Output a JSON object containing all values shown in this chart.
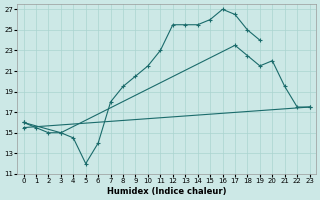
{
  "xlabel": "Humidex (Indice chaleur)",
  "bg_color": "#cce8e6",
  "grid_color": "#aad4d0",
  "line_color": "#1a6b6b",
  "xlim": [
    -0.5,
    23.5
  ],
  "ylim": [
    11,
    27.5
  ],
  "xticks": [
    0,
    1,
    2,
    3,
    4,
    5,
    6,
    7,
    8,
    9,
    10,
    11,
    12,
    13,
    14,
    15,
    16,
    17,
    18,
    19,
    20,
    21,
    22,
    23
  ],
  "yticks": [
    11,
    13,
    15,
    17,
    19,
    21,
    23,
    25,
    27
  ],
  "line1": {
    "x": [
      0,
      1,
      2,
      3,
      4,
      5,
      6,
      7,
      8,
      9,
      10,
      11,
      12,
      13,
      14,
      15,
      16,
      17,
      18,
      19
    ],
    "y": [
      16.0,
      15.5,
      15.0,
      15.0,
      14.5,
      12.0,
      14.0,
      18.0,
      19.5,
      20.5,
      21.5,
      23.0,
      25.5,
      25.5,
      25.5,
      26.0,
      27.0,
      26.5,
      25.0,
      24.0
    ]
  },
  "line2": {
    "x": [
      0,
      3,
      17,
      18,
      19,
      20,
      21,
      22,
      23
    ],
    "y": [
      16.0,
      15.0,
      23.5,
      22.5,
      21.5,
      22.0,
      19.5,
      17.5,
      17.5
    ]
  },
  "line3": {
    "x": [
      0,
      23
    ],
    "y": [
      15.5,
      17.5
    ]
  }
}
